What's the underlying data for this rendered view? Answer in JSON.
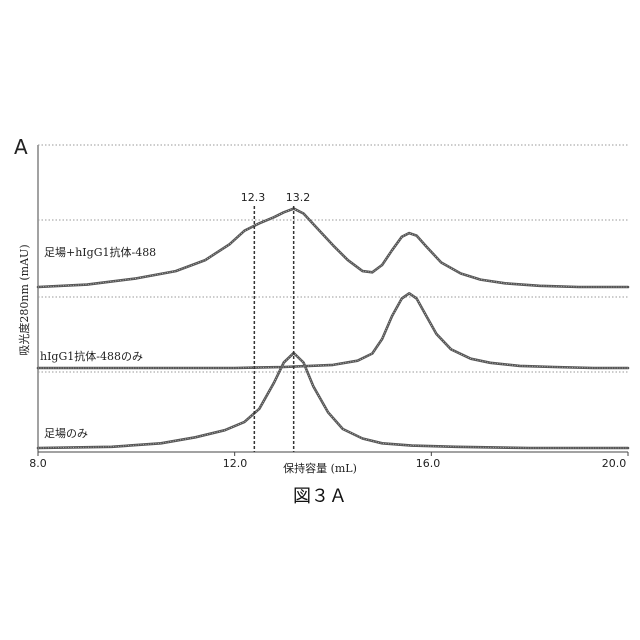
{
  "panel_letter": "A",
  "caption": "図３Ａ",
  "chart_data": {
    "type": "line",
    "xlabel": "保持容量 (mL)",
    "ylabel": "吸光度280nm (mAU)",
    "xlim": [
      8.0,
      20.0
    ],
    "x_ticks": [
      "8.0",
      "12.0",
      "16.0",
      "20.0"
    ],
    "markers": [
      {
        "label": "12.3",
        "x": 12.4
      },
      {
        "label": "13.2",
        "x": 13.2
      }
    ],
    "series": [
      {
        "name": "足場+hIgG1抗体-488",
        "x": [
          8.0,
          9.0,
          10.0,
          10.8,
          11.4,
          11.9,
          12.2,
          12.5,
          12.8,
          13.0,
          13.2,
          13.4,
          13.7,
          14.0,
          14.3,
          14.6,
          14.8,
          15.0,
          15.2,
          15.4,
          15.55,
          15.7,
          15.9,
          16.2,
          16.6,
          17.0,
          17.5,
          18.2,
          19.0,
          20.0
        ],
        "y": [
          0.0,
          0.02,
          0.07,
          0.13,
          0.22,
          0.35,
          0.46,
          0.52,
          0.57,
          0.61,
          0.64,
          0.6,
          0.47,
          0.34,
          0.22,
          0.13,
          0.12,
          0.18,
          0.3,
          0.41,
          0.44,
          0.42,
          0.33,
          0.2,
          0.11,
          0.06,
          0.03,
          0.01,
          0.0,
          0.0
        ]
      },
      {
        "name": "hIgG1抗体-488のみ",
        "x": [
          8.0,
          10.0,
          12.0,
          13.0,
          14.0,
          14.5,
          14.8,
          15.0,
          15.2,
          15.4,
          15.55,
          15.7,
          15.9,
          16.1,
          16.4,
          16.8,
          17.2,
          17.8,
          18.5,
          19.3,
          20.0
        ],
        "y": [
          0.0,
          0.0,
          0.0,
          0.01,
          0.03,
          0.07,
          0.14,
          0.28,
          0.5,
          0.67,
          0.72,
          0.67,
          0.5,
          0.33,
          0.18,
          0.09,
          0.05,
          0.02,
          0.01,
          0.0,
          0.0
        ]
      },
      {
        "name": "足場のみ",
        "x": [
          8.0,
          9.5,
          10.5,
          11.2,
          11.8,
          12.2,
          12.5,
          12.8,
          13.0,
          13.2,
          13.4,
          13.6,
          13.9,
          14.2,
          14.6,
          15.0,
          15.6,
          16.5,
          18.0,
          20.0
        ],
        "y": [
          0.0,
          0.01,
          0.04,
          0.09,
          0.15,
          0.22,
          0.33,
          0.55,
          0.72,
          0.8,
          0.72,
          0.52,
          0.3,
          0.16,
          0.08,
          0.04,
          0.02,
          0.01,
          0.0,
          0.0
        ]
      }
    ]
  }
}
